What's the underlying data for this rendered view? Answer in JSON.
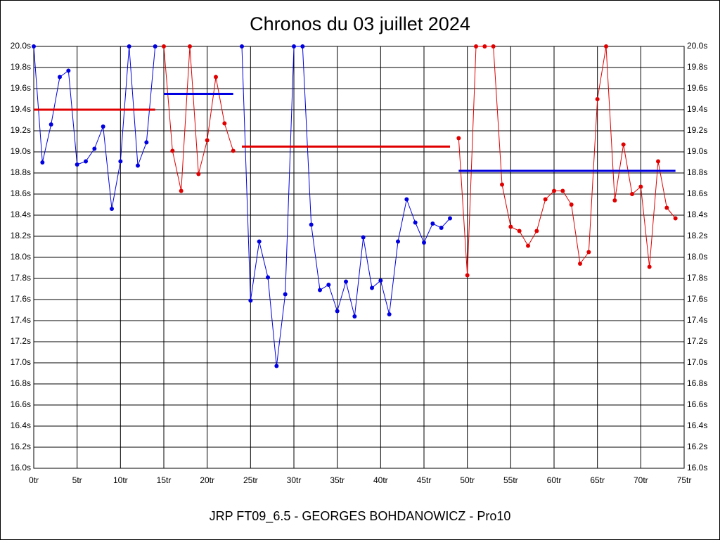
{
  "chart_data": {
    "type": "line",
    "title": "Chronos du 03 juillet 2024",
    "caption": "JRP FT09_6.5 - GEORGES BOHDANOWICZ - Pro10",
    "grid": true,
    "xlim": [
      0,
      75
    ],
    "ylim": [
      16.0,
      20.0
    ],
    "xticks": [
      {
        "value": 0,
        "label": "0tr"
      },
      {
        "value": 5,
        "label": "5tr"
      },
      {
        "value": 10,
        "label": "10tr"
      },
      {
        "value": 15,
        "label": "15tr"
      },
      {
        "value": 20,
        "label": "20tr"
      },
      {
        "value": 25,
        "label": "25tr"
      },
      {
        "value": 30,
        "label": "30tr"
      },
      {
        "value": 35,
        "label": "35tr"
      },
      {
        "value": 40,
        "label": "40tr"
      },
      {
        "value": 45,
        "label": "45tr"
      },
      {
        "value": 50,
        "label": "50tr"
      },
      {
        "value": 55,
        "label": "55tr"
      },
      {
        "value": 60,
        "label": "60tr"
      },
      {
        "value": 65,
        "label": "65tr"
      },
      {
        "value": 70,
        "label": "70tr"
      },
      {
        "value": 75,
        "label": "75tr"
      }
    ],
    "yticks": [
      {
        "value": 16.0,
        "label": "16.0s"
      },
      {
        "value": 16.2,
        "label": "16.2s"
      },
      {
        "value": 16.4,
        "label": "16.4s"
      },
      {
        "value": 16.6,
        "label": "16.6s"
      },
      {
        "value": 16.8,
        "label": "16.8s"
      },
      {
        "value": 17.0,
        "label": "17.0s"
      },
      {
        "value": 17.2,
        "label": "17.2s"
      },
      {
        "value": 17.4,
        "label": "17.4s"
      },
      {
        "value": 17.6,
        "label": "17.6s"
      },
      {
        "value": 17.8,
        "label": "17.8s"
      },
      {
        "value": 18.0,
        "label": "18.0s"
      },
      {
        "value": 18.2,
        "label": "18.2s"
      },
      {
        "value": 18.4,
        "label": "18.4s"
      },
      {
        "value": 18.6,
        "label": "18.6s"
      },
      {
        "value": 18.8,
        "label": "18.8s"
      },
      {
        "value": 19.0,
        "label": "19.0s"
      },
      {
        "value": 19.2,
        "label": "19.2s"
      },
      {
        "value": 19.4,
        "label": "19.4s"
      },
      {
        "value": 19.6,
        "label": "19.6s"
      },
      {
        "value": 19.8,
        "label": "19.8s"
      },
      {
        "value": 20.0,
        "label": "20.0s"
      }
    ],
    "series": [
      {
        "color": "#0000e0",
        "markers": true,
        "width": 1,
        "x": [
          0,
          1,
          2,
          3,
          4,
          5,
          6,
          7,
          8,
          9,
          10,
          11,
          12,
          13,
          14
        ],
        "values": [
          20.0,
          18.9,
          19.26,
          19.71,
          19.77,
          18.88,
          18.91,
          19.03,
          19.24,
          18.46,
          18.91,
          20.0,
          18.87,
          19.09,
          20.0
        ]
      },
      {
        "color": "#e00000",
        "markers": true,
        "width": 1,
        "x": [
          15,
          16,
          17,
          18,
          19,
          20,
          21,
          22,
          23
        ],
        "values": [
          20.0,
          19.01,
          18.63,
          20.0,
          18.79,
          19.11,
          19.71,
          19.27,
          19.01
        ]
      },
      {
        "color": "#0000e0",
        "markers": true,
        "width": 1,
        "x": [
          24,
          25,
          26,
          27,
          28,
          29,
          30,
          31,
          32,
          33,
          34,
          35,
          36,
          37,
          38,
          39,
          40,
          41,
          42,
          43,
          44,
          45,
          46,
          47,
          48
        ],
        "values": [
          20.0,
          17.59,
          18.15,
          17.81,
          16.97,
          17.65,
          20.0,
          20.0,
          18.31,
          17.69,
          17.74,
          17.49,
          17.77,
          17.44,
          18.19,
          17.71,
          17.78,
          17.46,
          18.15,
          18.55,
          18.33,
          18.14,
          18.32,
          18.28,
          18.37
        ]
      },
      {
        "color": "#e00000",
        "markers": true,
        "width": 1,
        "x": [
          49,
          50,
          51,
          52,
          53,
          54,
          55,
          56,
          57,
          58,
          59,
          60,
          61,
          62,
          63,
          64,
          65,
          66,
          67,
          68,
          69,
          70,
          71,
          72,
          73,
          74
        ],
        "values": [
          19.13,
          17.83,
          20.0,
          20.0,
          20.0,
          18.69,
          18.29,
          18.25,
          18.11,
          18.25,
          18.55,
          18.63,
          18.63,
          18.5,
          17.94,
          18.05,
          19.5,
          20.0,
          18.54,
          19.07,
          18.6,
          18.67,
          17.91,
          18.91,
          18.47,
          18.37
        ]
      },
      {
        "color": "#e00000",
        "markers": false,
        "width": 3,
        "x": [
          0,
          14
        ],
        "values": [
          19.4,
          19.4
        ]
      },
      {
        "color": "#0000e0",
        "markers": false,
        "width": 3,
        "x": [
          15,
          23
        ],
        "values": [
          19.55,
          19.55
        ]
      },
      {
        "color": "#e00000",
        "markers": false,
        "width": 3,
        "x": [
          24,
          48
        ],
        "values": [
          19.05,
          19.05
        ]
      },
      {
        "color": "#0000e0",
        "markers": false,
        "width": 3,
        "x": [
          49,
          74
        ],
        "values": [
          18.82,
          18.82
        ]
      }
    ]
  }
}
